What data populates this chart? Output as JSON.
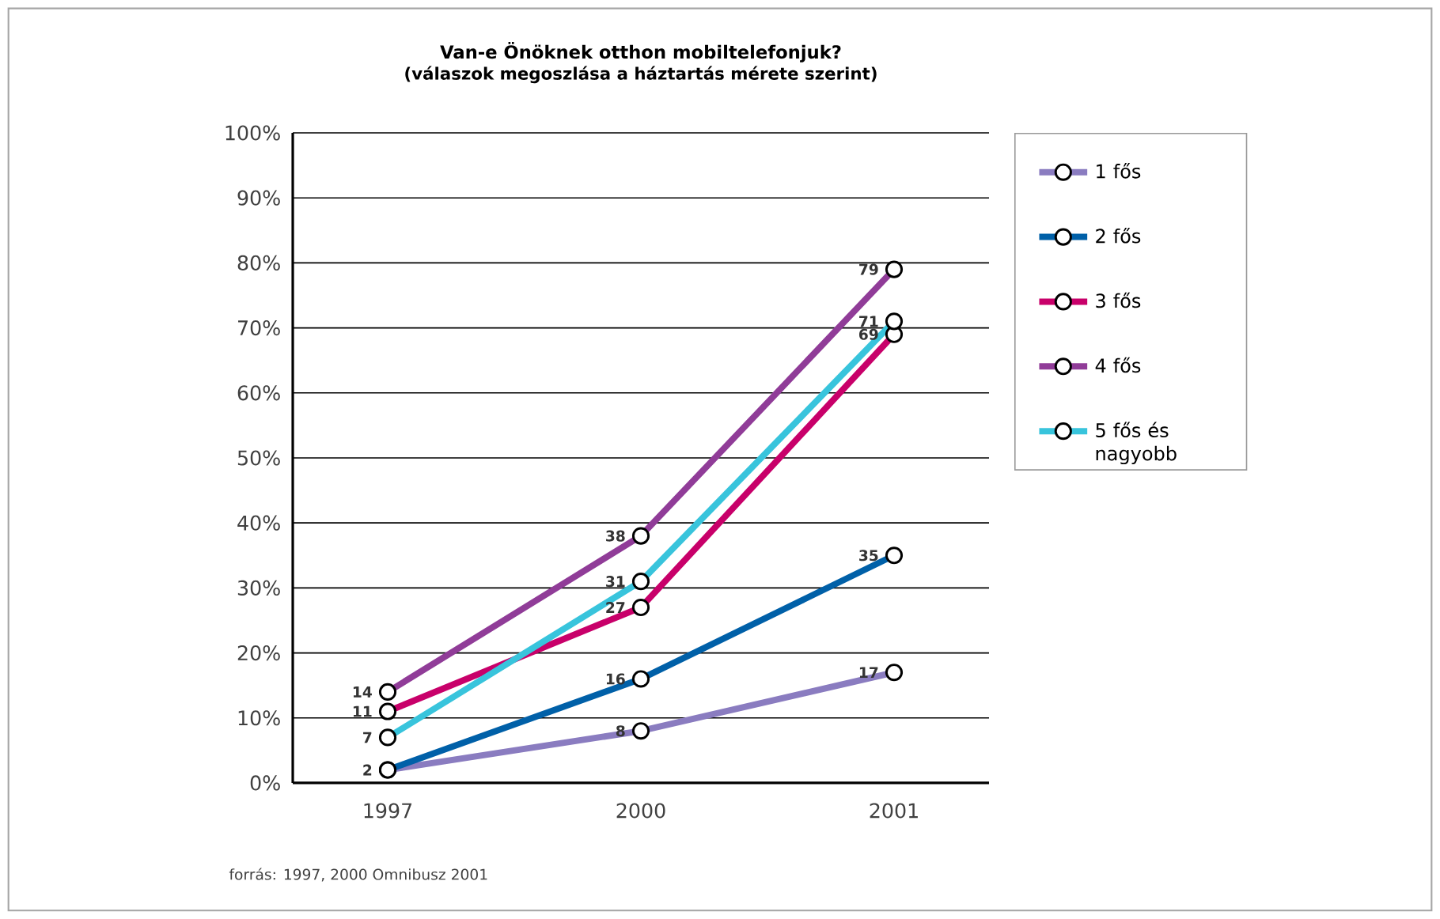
{
  "chart_data": {
    "type": "line",
    "title": "Van-e Önöknek otthon mobiltelefonjuk?",
    "subtitle": "(válaszok megoszlása a háztartás mérete szerint)",
    "categories": [
      "1997",
      "2000",
      "2001"
    ],
    "series": [
      {
        "name": "1 fős",
        "color": "#8a7cc0",
        "values": [
          2,
          8,
          17
        ],
        "value_labels": [
          "2",
          "8",
          "17"
        ]
      },
      {
        "name": "2 fős",
        "color": "#0060a8",
        "values": [
          2,
          16,
          35
        ],
        "value_labels": [
          null,
          "16",
          "35"
        ]
      },
      {
        "name": "3 fős",
        "color": "#c8006a",
        "values": [
          11,
          27,
          69
        ],
        "value_labels": [
          "11",
          "27",
          "69"
        ]
      },
      {
        "name": "4 fős",
        "color": "#903c98",
        "values": [
          14,
          38,
          79
        ],
        "value_labels": [
          "14",
          "38",
          "79"
        ]
      },
      {
        "name": "5 fős és nagyobb",
        "color": "#38c4dc",
        "values": [
          7,
          31,
          71
        ],
        "value_labels": [
          "7",
          "31",
          "71"
        ]
      }
    ],
    "ylim": [
      0,
      100
    ],
    "yticks": [
      {
        "value": 0,
        "label": "0%"
      },
      {
        "value": 10,
        "label": "10%"
      },
      {
        "value": 20,
        "label": "20%"
      },
      {
        "value": 30,
        "label": "30%"
      },
      {
        "value": 40,
        "label": "40%"
      },
      {
        "value": 50,
        "label": "50%"
      },
      {
        "value": 60,
        "label": "60%"
      },
      {
        "value": 70,
        "label": "70%"
      },
      {
        "value": 80,
        "label": "80%"
      },
      {
        "value": 90,
        "label": "90%"
      },
      {
        "value": 100,
        "label": "100%"
      }
    ],
    "grid": "y",
    "legend": "top right",
    "marker": "circle",
    "line_style": "solid",
    "annotations": [
      "forrás: 1997, 2000 Omnibusz 2001"
    ]
  }
}
